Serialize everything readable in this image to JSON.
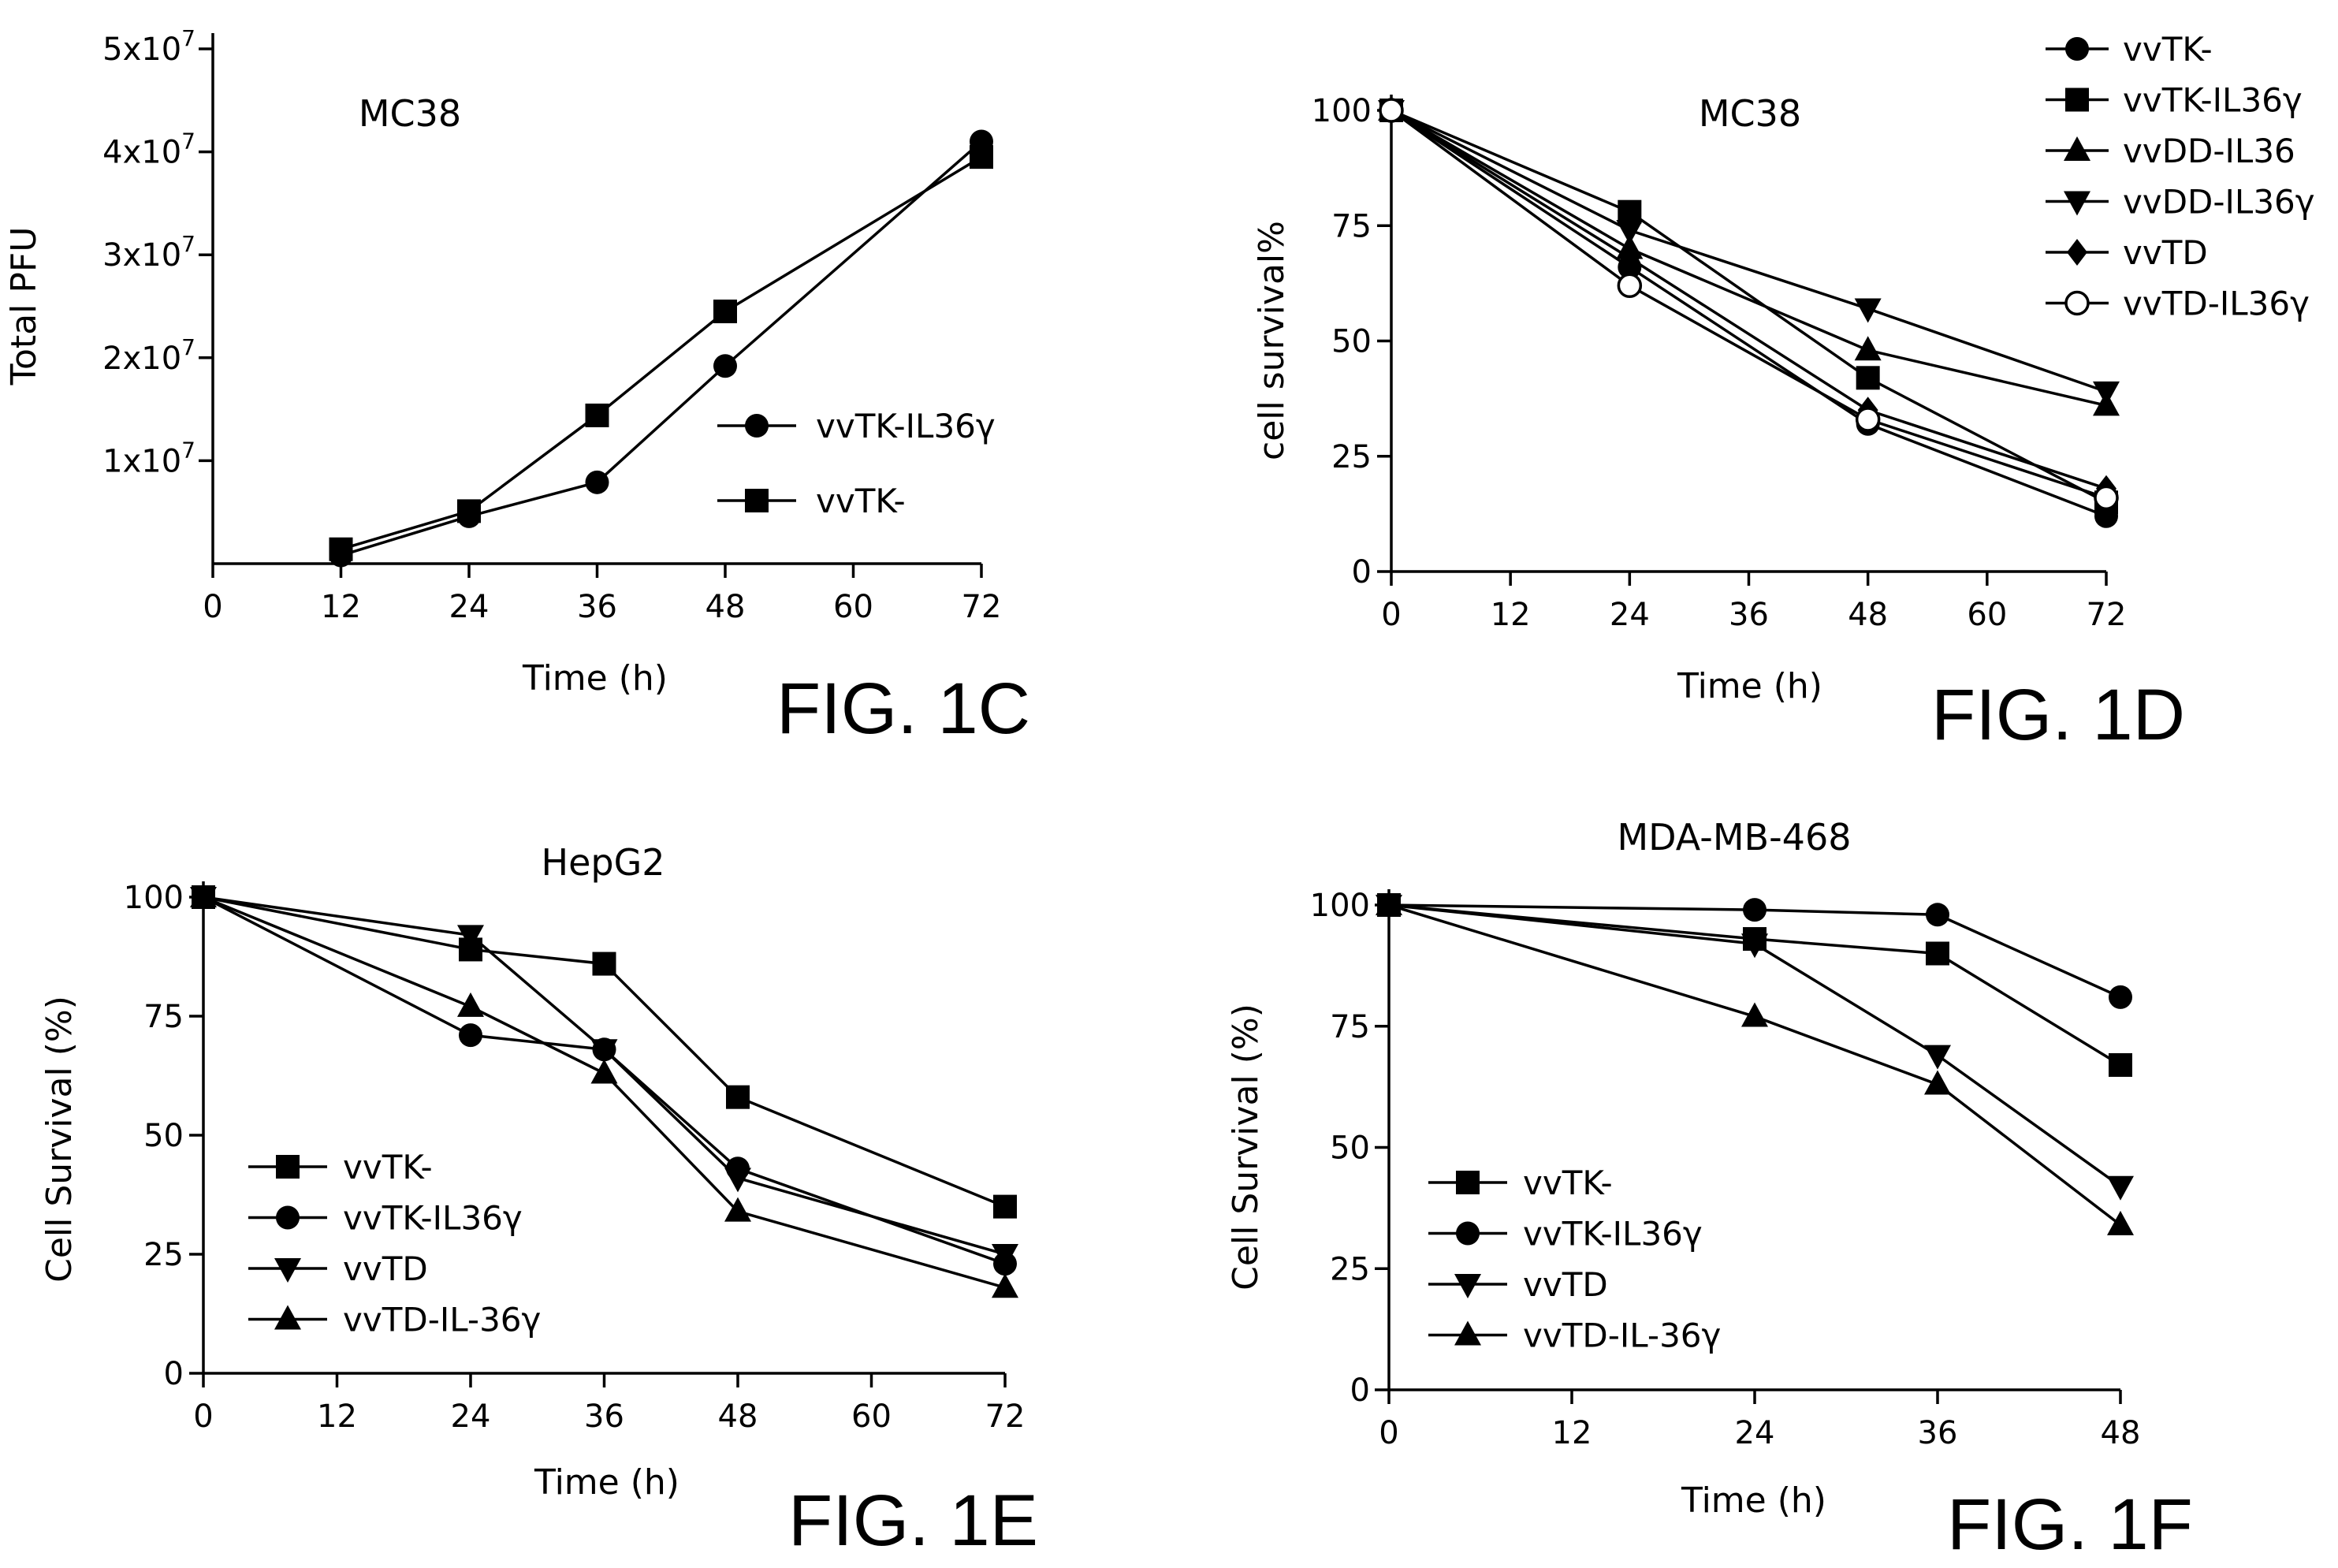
{
  "chart_data": [
    {
      "id": "fig1c",
      "type": "line",
      "figure_label": "FIG. 1C",
      "title": "MC38",
      "xlabel": "Time (h)",
      "ylabel": "Total PFU",
      "xlim": [
        0,
        72
      ],
      "ylim": [
        0,
        50000000
      ],
      "x_ticks": [
        0,
        12,
        24,
        36,
        48,
        60,
        72
      ],
      "y_ticks": [
        10000000,
        20000000,
        30000000,
        40000000,
        50000000
      ],
      "y_tick_labels": [
        {
          "mant": "1x10",
          "exp": "7"
        },
        {
          "mant": "2x10",
          "exp": "7"
        },
        {
          "mant": "3x10",
          "exp": "7"
        },
        {
          "mant": "4x10",
          "exp": "7"
        },
        {
          "mant": "5x10",
          "exp": "7"
        }
      ],
      "legend_position": "middle-right",
      "series": [
        {
          "name": "vvTK-IL36γ",
          "marker": "circle",
          "x": [
            12,
            24,
            36,
            48,
            72
          ],
          "values": [
            800000,
            4600000,
            7900000,
            19200000,
            41000000
          ]
        },
        {
          "name": "vvTK-",
          "marker": "square",
          "x": [
            12,
            24,
            36,
            48,
            72
          ],
          "values": [
            1400000,
            5100000,
            14400000,
            24500000,
            39500000
          ]
        }
      ]
    },
    {
      "id": "fig1d",
      "type": "line",
      "figure_label": "FIG. 1D",
      "title": "MC38",
      "xlabel": "Time (h)",
      "ylabel": "cell survival%",
      "xlim": [
        0,
        72
      ],
      "ylim": [
        0,
        100
      ],
      "x_ticks": [
        0,
        12,
        24,
        36,
        48,
        60,
        72
      ],
      "y_ticks": [
        0,
        25,
        50,
        75,
        100
      ],
      "legend_position": "top-right",
      "series": [
        {
          "name": "vvTK-",
          "marker": "circle",
          "x": [
            0,
            24,
            48,
            72
          ],
          "values": [
            100,
            66,
            32,
            12
          ]
        },
        {
          "name": "vvTK-IL36γ",
          "marker": "square",
          "x": [
            0,
            24,
            48,
            72
          ],
          "values": [
            100,
            78,
            42,
            15
          ]
        },
        {
          "name": "vvDD-IL36",
          "marker": "triangle-up",
          "x": [
            0,
            24,
            48,
            72
          ],
          "values": [
            100,
            70,
            48,
            36
          ]
        },
        {
          "name": "vvDD-IL36γ",
          "marker": "triangle-down",
          "x": [
            0,
            24,
            48,
            72
          ],
          "values": [
            100,
            74,
            57,
            39
          ]
        },
        {
          "name": "vvTD",
          "marker": "diamond",
          "x": [
            0,
            24,
            48,
            72
          ],
          "values": [
            100,
            68,
            35,
            18
          ]
        },
        {
          "name": "vvTD-IL36γ",
          "marker": "open-circle",
          "x": [
            0,
            24,
            48,
            72
          ],
          "values": [
            100,
            62,
            33,
            16
          ]
        }
      ]
    },
    {
      "id": "fig1e",
      "type": "line",
      "figure_label": "FIG. 1E",
      "title": "HepG2",
      "xlabel": "Time (h)",
      "ylabel": "Cell Survival (%)",
      "xlim": [
        0,
        72
      ],
      "ylim": [
        0,
        100
      ],
      "x_ticks": [
        0,
        12,
        24,
        36,
        48,
        60,
        72
      ],
      "y_ticks": [
        0,
        25,
        50,
        75,
        100
      ],
      "legend_position": "bottom-left",
      "series": [
        {
          "name": "vvTK-",
          "marker": "square",
          "x": [
            0,
            24,
            36,
            48,
            72
          ],
          "values": [
            100,
            89,
            86,
            58,
            35
          ]
        },
        {
          "name": "vvTK-IL36γ",
          "marker": "circle",
          "x": [
            0,
            24,
            36,
            48,
            72
          ],
          "values": [
            100,
            71,
            68,
            43,
            23
          ]
        },
        {
          "name": "vvTD",
          "marker": "triangle-down",
          "x": [
            0,
            24,
            36,
            48,
            72
          ],
          "values": [
            100,
            92,
            68,
            41,
            25
          ]
        },
        {
          "name": "vvTD-IL-36γ",
          "marker": "triangle-up",
          "x": [
            0,
            24,
            36,
            48,
            72
          ],
          "values": [
            100,
            77,
            63,
            34,
            18
          ]
        }
      ]
    },
    {
      "id": "fig1f",
      "type": "line",
      "figure_label": "FIG. 1F",
      "title": "MDA-MB-468",
      "xlabel": "Time (h)",
      "ylabel": "Cell Survival (%)",
      "xlim": [
        0,
        48
      ],
      "ylim": [
        0,
        100
      ],
      "x_ticks": [
        0,
        12,
        24,
        36,
        48
      ],
      "y_ticks": [
        0,
        25,
        50,
        75,
        100
      ],
      "legend_position": "bottom-left",
      "series": [
        {
          "name": "vvTK-",
          "marker": "square",
          "x": [
            0,
            24,
            36,
            48
          ],
          "values": [
            100,
            93,
            90,
            67
          ]
        },
        {
          "name": "vvTK-IL36γ",
          "marker": "circle",
          "x": [
            0,
            24,
            36,
            48
          ],
          "values": [
            100,
            99,
            98,
            81
          ]
        },
        {
          "name": "vvTD",
          "marker": "triangle-down",
          "x": [
            0,
            24,
            36,
            48
          ],
          "values": [
            100,
            92,
            69,
            42
          ]
        },
        {
          "name": "vvTD-IL-36γ",
          "marker": "triangle-up",
          "x": [
            0,
            24,
            36,
            48
          ],
          "values": [
            100,
            77,
            63,
            34
          ]
        }
      ]
    }
  ]
}
